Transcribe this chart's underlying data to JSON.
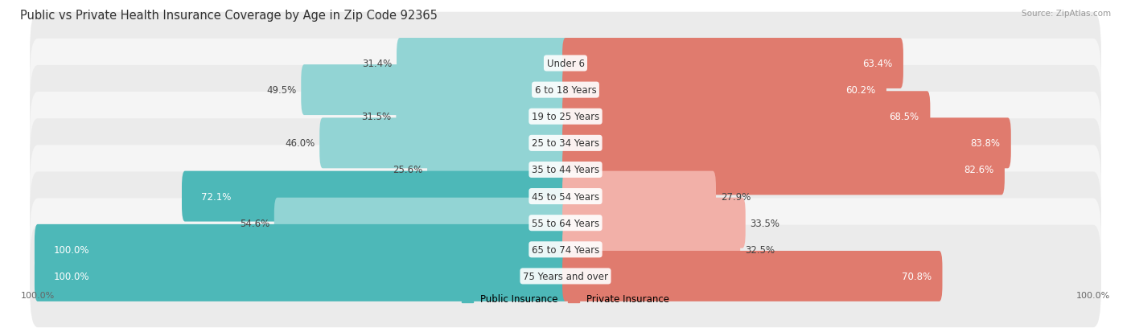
{
  "title": "Public vs Private Health Insurance Coverage by Age in Zip Code 92365",
  "source": "Source: ZipAtlas.com",
  "categories": [
    "Under 6",
    "6 to 18 Years",
    "19 to 25 Years",
    "25 to 34 Years",
    "35 to 44 Years",
    "45 to 54 Years",
    "55 to 64 Years",
    "65 to 74 Years",
    "75 Years and over"
  ],
  "public_values": [
    31.4,
    49.5,
    31.5,
    46.0,
    25.6,
    72.1,
    54.6,
    100.0,
    100.0
  ],
  "private_values": [
    63.4,
    60.2,
    68.5,
    83.8,
    82.6,
    27.9,
    33.5,
    32.5,
    70.8
  ],
  "public_color_dark": "#4db8b8",
  "public_color_light": "#92d4d4",
  "private_color_dark": "#e07b6e",
  "private_color_light": "#f2b0a8",
  "row_bg_color": "#ebebeb",
  "row_bg_alt_color": "#f5f5f5",
  "title_fontsize": 10.5,
  "source_fontsize": 7.5,
  "value_fontsize": 8.5,
  "label_fontsize": 8.5,
  "legend_fontsize": 8.5,
  "pub_dark_threshold": 60,
  "priv_dark_threshold": 55
}
